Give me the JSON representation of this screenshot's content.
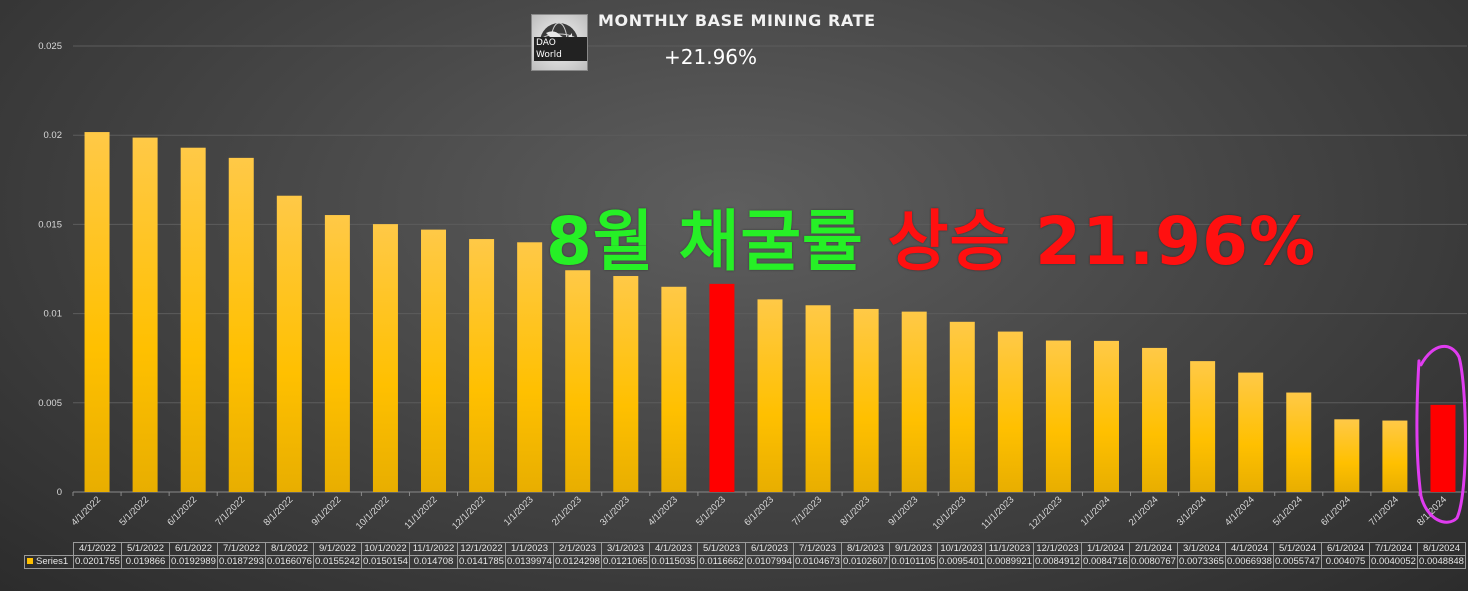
{
  "header": {
    "title": "MONTHLY BASE MINING RATE",
    "change": "+21.96%",
    "logo_word1": "DAO",
    "logo_word2": "World"
  },
  "annotation": {
    "part1": "8월 채굴률",
    "part2": "상승 21.96%"
  },
  "colors": {
    "bar": "#ffc000",
    "highlight": "#ff0000",
    "ellipse": "#e03cf0",
    "headline_green": "#26f026",
    "headline_red": "#ff1010"
  },
  "chart_data": {
    "type": "bar",
    "ylim": [
      0,
      0.025
    ],
    "yticks": [
      "0",
      "0.005",
      "0.01",
      "0.015",
      "0.02",
      "0.025"
    ],
    "categories": [
      "4/1/2022",
      "5/1/2022",
      "6/1/2022",
      "7/1/2022",
      "8/1/2022",
      "9/1/2022",
      "10/1/2022",
      "11/1/2022",
      "12/1/2022",
      "1/1/2023",
      "2/1/2023",
      "3/1/2023",
      "4/1/2023",
      "5/1/2023",
      "6/1/2023",
      "7/1/2023",
      "8/1/2023",
      "9/1/2023",
      "10/1/2023",
      "11/1/2023",
      "12/1/2023",
      "1/1/2024",
      "2/1/2024",
      "3/1/2024",
      "4/1/2024",
      "5/1/2024",
      "6/1/2024",
      "7/1/2024",
      "8/1/2024"
    ],
    "series": [
      {
        "name": "Series1",
        "values": [
          0.0201755,
          0.019866,
          0.0192989,
          0.0187293,
          0.0166076,
          0.0155242,
          0.0150154,
          0.014708,
          0.0141785,
          0.0139974,
          0.0124298,
          0.0121065,
          0.0115035,
          0.0116662,
          0.0107994,
          0.0104673,
          0.0102607,
          0.0101105,
          0.0095401,
          0.0089921,
          0.0084912,
          0.0084716,
          0.0080767,
          0.0073365,
          0.0066938,
          0.0055747,
          0.004075,
          0.0040052,
          0.0048848
        ],
        "labels": [
          "0.0201755",
          "0.019866",
          "0.0192989",
          "0.0187293",
          "0.0166076",
          "0.0155242",
          "0.0150154",
          "0.014708",
          "0.0141785",
          "0.0139974",
          "0.0124298",
          "0.0121065",
          "0.0115035",
          "0.0116662",
          "0.0107994",
          "0.0104673",
          "0.0102607",
          "0.0101105",
          "0.0095401",
          "0.0089921",
          "0.0084912",
          "0.0084716",
          "0.0080767",
          "0.0073365",
          "0.0066938",
          "0.0055747",
          "0.004075",
          "0.0040052",
          "0.0048848"
        ]
      }
    ],
    "highlighted_categories": [
      "5/1/2023",
      "8/1/2024"
    ],
    "circled_category": "8/1/2024",
    "grid": true,
    "legend": "data-table"
  }
}
